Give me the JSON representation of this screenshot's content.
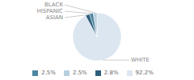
{
  "chart_data": {
    "type": "pie",
    "categories": [
      "WHITE",
      "ASIAN",
      "HISPANIC",
      "BLACK"
    ],
    "values": [
      92.2,
      2.8,
      2.5,
      2.5
    ],
    "value_labels": [
      "92.2%",
      "2.8%",
      "2.5%",
      "2.5%"
    ],
    "colors": [
      "#dce6f0",
      "#2e5f7c",
      "#4d85a0",
      "#b8cfe0"
    ],
    "legend": "bottom"
  }
}
